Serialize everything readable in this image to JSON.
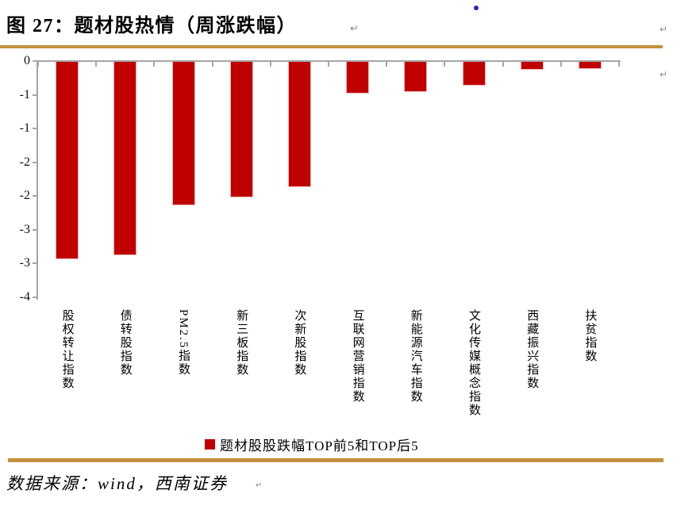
{
  "page": {
    "title": "图 27：题材股热情（周涨跌幅）",
    "source_text": "数据来源：wind，西南证券",
    "paragraph_mark": "↵"
  },
  "colors": {
    "bar_red": "#c00000",
    "bar_edge_pink": "#edb8b6",
    "gold_rule": "#c3913d",
    "axis_gray": "#a6a6a6",
    "mark_gray": "#8a8a8a",
    "bullet_blue": "#2626d2"
  },
  "icons": {
    "bullet_dot": "blue-dot",
    "paragraph_marks": "word-return-mark"
  },
  "chart_data": {
    "type": "bar",
    "title": "",
    "categories": [
      "股权转让指数",
      "债转股指数",
      "PM2.5指数",
      "新三板指数",
      "次新股指数",
      "互联网营销指数",
      "新能源汽车指数",
      "文化传媒概念指数",
      "西藏振兴指数",
      "扶贫指数"
    ],
    "values": [
      -2.93,
      -2.86,
      -2.12,
      -2.01,
      -1.85,
      -0.47,
      -0.45,
      -0.35,
      -0.12,
      -0.11
    ],
    "xlabel": "",
    "ylabel": "",
    "ylim": [
      -3.5,
      0
    ],
    "y_tick_values": [
      0,
      -0.5,
      -1,
      -1.5,
      -2,
      -2.5,
      -3,
      -3.5
    ],
    "y_tick_labels": [
      "0",
      "-1",
      "-1",
      "-2",
      "-2",
      "-3",
      "-3",
      "-4"
    ],
    "grid": false,
    "bar_color": "#c00000",
    "legend": [
      "题材股股跌幅TOP前5和TOP后5"
    ],
    "legend_position": "bottom"
  }
}
